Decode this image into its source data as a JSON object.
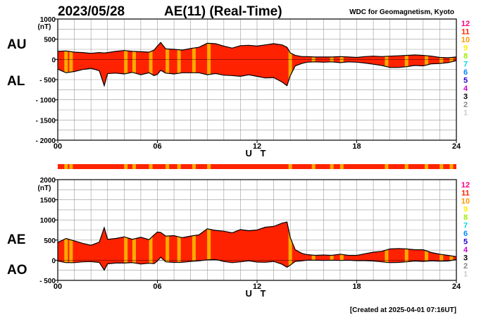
{
  "header": {
    "date": "2023/05/28",
    "title": "AE(11) (Real-Time)",
    "source": "WDC for Geomagnetism, Kyoto"
  },
  "footer": {
    "created": "[Created at 2025-04-01 07:16UT]"
  },
  "colors": {
    "fill_red": "#ff2200",
    "fill_orange": "#ffaa00",
    "outline": "#000000",
    "grid": "#999999"
  },
  "station_legend": [
    {
      "label": "12",
      "color": "#ff0080"
    },
    {
      "label": "11",
      "color": "#ff2000"
    },
    {
      "label": "10",
      "color": "#ff9900"
    },
    {
      "label": "9",
      "color": "#ffee00"
    },
    {
      "label": "8",
      "color": "#99ee00"
    },
    {
      "label": "7",
      "color": "#00dddd"
    },
    {
      "label": "6",
      "color": "#0088ff"
    },
    {
      "label": "5",
      "color": "#2200cc"
    },
    {
      "label": "4",
      "color": "#cc00cc"
    },
    {
      "label": "3",
      "color": "#000000"
    },
    {
      "label": "2",
      "color": "#888888"
    },
    {
      "label": "1",
      "color": "#cccccc"
    }
  ],
  "station_bar": {
    "orange_hours": [
      0.5,
      0.8,
      4.1,
      4.6,
      5.6,
      6.6,
      7.3,
      8.2,
      9.1,
      14.0,
      15.4,
      16.5,
      17.1,
      19.8,
      21.0,
      22.2,
      23.1,
      23.7
    ]
  },
  "chart_data": [
    {
      "type": "area",
      "title": "AU / AL",
      "upper_label": "AU",
      "lower_label": "AL",
      "xlabel": "U T",
      "ylabel": "(nT)",
      "xlim": [
        0,
        24
      ],
      "ylim": [
        -2000,
        1000
      ],
      "xticks": [
        0,
        6,
        12,
        18,
        24
      ],
      "xtick_labels": [
        "00",
        "06",
        "12",
        "18",
        "24"
      ],
      "yticks": [
        1000,
        500,
        0,
        -500,
        -1000,
        -1500,
        -2000
      ],
      "ytick_labels": [
        "1000",
        "500",
        "0",
        "- 500",
        "- 1000",
        "- 1500",
        "- 2000"
      ],
      "grid": true,
      "x": [
        0,
        0.5,
        1,
        1.5,
        2,
        2.5,
        2.8,
        3,
        3.5,
        4,
        4.5,
        5,
        5.5,
        5.8,
        6,
        6.2,
        6.5,
        7,
        7.5,
        8,
        8.5,
        9,
        9.5,
        10,
        10.5,
        11,
        11.5,
        12,
        12.5,
        13,
        13.5,
        13.8,
        14,
        14.3,
        14.7,
        15,
        15.5,
        16,
        16.5,
        17,
        17.5,
        18,
        18.5,
        19,
        19.5,
        20,
        20.5,
        21,
        21.5,
        22,
        22.5,
        23,
        23.5,
        24
      ],
      "series": [
        {
          "name": "AU",
          "values": [
            200,
            210,
            180,
            170,
            150,
            170,
            160,
            170,
            200,
            220,
            200,
            190,
            180,
            230,
            330,
            420,
            260,
            250,
            230,
            270,
            300,
            400,
            390,
            330,
            280,
            340,
            350,
            330,
            360,
            390,
            360,
            300,
            160,
            100,
            70,
            70,
            60,
            60,
            60,
            70,
            60,
            50,
            70,
            80,
            70,
            80,
            90,
            100,
            110,
            100,
            80,
            50,
            40,
            60
          ]
        },
        {
          "name": "AL",
          "values": [
            -240,
            -330,
            -300,
            -250,
            -220,
            -280,
            -650,
            -350,
            -340,
            -360,
            -320,
            -380,
            -330,
            -400,
            -370,
            -270,
            -340,
            -360,
            -330,
            -330,
            -330,
            -380,
            -350,
            -390,
            -400,
            -420,
            -380,
            -420,
            -460,
            -450,
            -560,
            -650,
            -400,
            -160,
            -100,
            -70,
            -60,
            -70,
            -60,
            -80,
            -60,
            -70,
            -90,
            -120,
            -150,
            -200,
            -200,
            -180,
            -150,
            -160,
            -110,
            -100,
            -80,
            -30
          ]
        }
      ]
    },
    {
      "type": "area",
      "title": "AE / AO",
      "upper_label": "AE",
      "lower_label": "AO",
      "xlabel": "U T",
      "ylabel": "(nT)",
      "xlim": [
        0,
        24
      ],
      "ylim": [
        -500,
        2000
      ],
      "xticks": [
        0,
        6,
        12,
        18,
        24
      ],
      "xtick_labels": [
        "00",
        "06",
        "12",
        "18",
        "24"
      ],
      "yticks": [
        2000,
        1500,
        1000,
        500,
        0,
        -500
      ],
      "ytick_labels": [
        "2000",
        "1500",
        "1000",
        "500",
        "0",
        "- 500"
      ],
      "grid": true,
      "x": [
        0,
        0.5,
        1,
        1.5,
        2,
        2.5,
        2.8,
        3,
        3.5,
        4,
        4.5,
        5,
        5.5,
        5.8,
        6,
        6.2,
        6.5,
        7,
        7.5,
        8,
        8.5,
        9,
        9.5,
        10,
        10.5,
        11,
        11.5,
        12,
        12.5,
        13,
        13.5,
        13.8,
        14,
        14.3,
        14.7,
        15,
        15.5,
        16,
        16.5,
        17,
        17.5,
        18,
        18.5,
        19,
        19.5,
        20,
        20.5,
        21,
        21.5,
        22,
        22.5,
        23,
        23.5,
        24
      ],
      "series": [
        {
          "name": "AE",
          "values": [
            440,
            540,
            480,
            420,
            370,
            450,
            810,
            520,
            540,
            580,
            520,
            570,
            510,
            630,
            700,
            690,
            600,
            610,
            560,
            600,
            630,
            780,
            740,
            720,
            680,
            760,
            730,
            750,
            820,
            840,
            920,
            950,
            560,
            260,
            170,
            140,
            120,
            130,
            120,
            150,
            120,
            120,
            160,
            200,
            220,
            280,
            290,
            280,
            260,
            260,
            190,
            150,
            120,
            90
          ]
        },
        {
          "name": "AO",
          "values": [
            -20,
            -60,
            -60,
            -40,
            -35,
            -55,
            -245,
            -90,
            -70,
            -70,
            -60,
            -95,
            -75,
            -85,
            -20,
            75,
            -40,
            -55,
            -50,
            -30,
            -15,
            10,
            20,
            -30,
            -60,
            -40,
            -15,
            -45,
            -50,
            -30,
            -100,
            -175,
            -120,
            -30,
            -15,
            0,
            0,
            -5,
            0,
            -5,
            0,
            -10,
            -10,
            -20,
            -40,
            -60,
            -55,
            -40,
            -20,
            -30,
            -15,
            -25,
            -20,
            15
          ]
        }
      ]
    }
  ]
}
